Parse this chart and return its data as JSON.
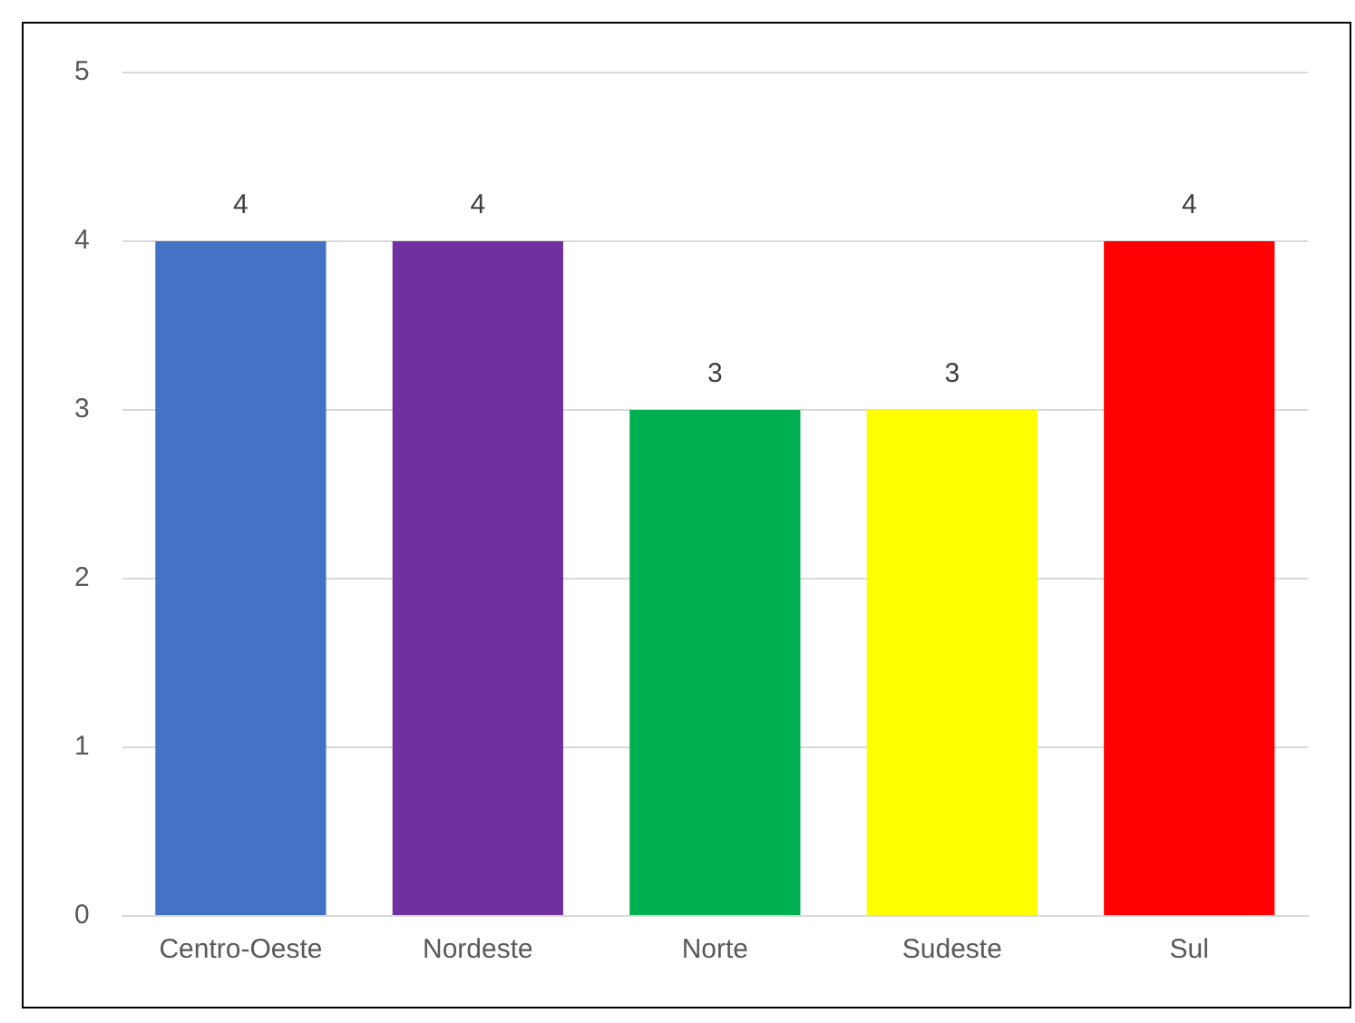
{
  "chart_data": {
    "type": "bar",
    "categories": [
      "Centro-Oeste",
      "Nordeste",
      "Norte",
      "Sudeste",
      "Sul"
    ],
    "values": [
      4,
      4,
      3,
      3,
      4
    ],
    "colors": [
      "#4472c4",
      "#7030a0",
      "#00b050",
      "#ffff00",
      "#ff0000"
    ],
    "ylim": [
      0,
      5
    ],
    "yticks": [
      0,
      1,
      2,
      3,
      4,
      5
    ],
    "grid": "y",
    "data_labels": true,
    "legend": false
  }
}
